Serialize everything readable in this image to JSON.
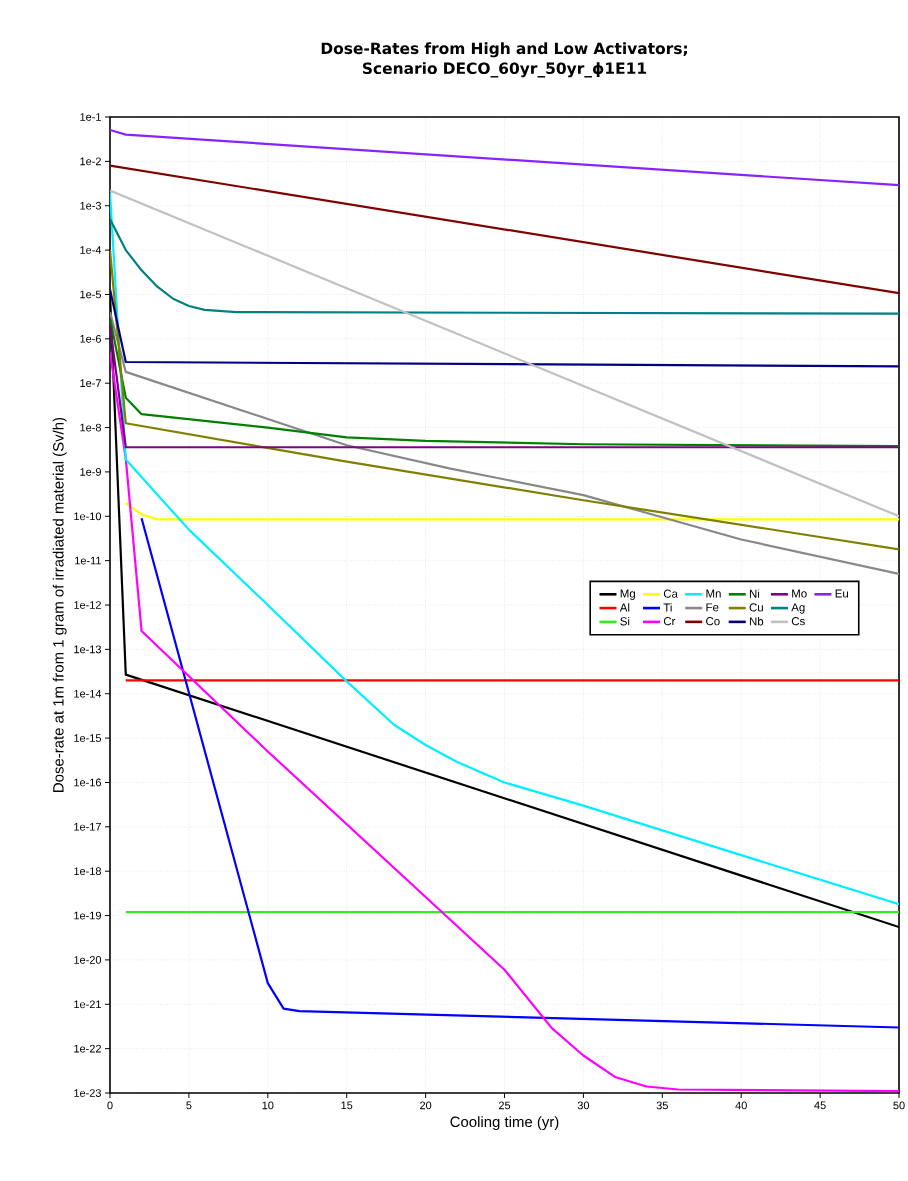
{
  "chart_data": {
    "type": "line",
    "title": "Dose-Rates from High and Low Activators; Scenario DECO_60yr_50yr_ϕ1E11",
    "xlabel": "Cooling time (yr)",
    "ylabel": "Dose-rate at 1m from 1 gram of irradiated material (Sv/h)",
    "log": "y",
    "grid": true,
    "legend": "right",
    "marker": "none",
    "line_style": "solid",
    "xlim": [
      0,
      50
    ],
    "xticks": [
      0,
      5,
      10,
      15,
      20,
      25,
      30,
      35,
      40,
      45,
      50
    ],
    "ylim": [
      1e-23,
      0.1
    ],
    "yticks": [
      {
        "value": 1e-23,
        "label": "1e-23"
      },
      {
        "value": 1e-22,
        "label": "1e-22"
      },
      {
        "value": 1e-21,
        "label": "1e-21"
      },
      {
        "value": 1e-20,
        "label": "1e-20"
      },
      {
        "value": 1e-19,
        "label": "1e-19"
      },
      {
        "value": 1e-18,
        "label": "1e-18"
      },
      {
        "value": 1e-17,
        "label": "1e-17"
      },
      {
        "value": 1e-16,
        "label": "1e-16"
      },
      {
        "value": 1e-15,
        "label": "1e-15"
      },
      {
        "value": 1e-14,
        "label": "1e-14"
      },
      {
        "value": 1e-13,
        "label": "1e-13"
      },
      {
        "value": 1e-12,
        "label": "1e-12"
      },
      {
        "value": 1e-11,
        "label": "1e-11"
      },
      {
        "value": 1e-10,
        "label": "1e-10"
      },
      {
        "value": 1e-09,
        "label": "1e-9"
      },
      {
        "value": 1e-08,
        "label": "1e-8"
      },
      {
        "value": 1e-07,
        "label": "1e-7"
      },
      {
        "value": 1e-06,
        "label": "1e-6"
      },
      {
        "value": 1e-05,
        "label": "1e-5"
      },
      {
        "value": 0.0001,
        "label": "1e-4"
      },
      {
        "value": 0.001,
        "label": "1e-3"
      },
      {
        "value": 0.01,
        "label": "1e-2"
      },
      {
        "value": 0.1,
        "label": "1e-1"
      }
    ],
    "series": [
      {
        "name": "Mg",
        "color": "#000000",
        "x": [
          0,
          1,
          50
        ],
        "values": [
          1e-05,
          2.7e-14,
          5.5e-20
        ]
      },
      {
        "name": "Al",
        "color": "#ff0000",
        "x": [
          1,
          50
        ],
        "values": [
          2e-14,
          2e-14
        ]
      },
      {
        "name": "Si",
        "color": "#33ee22",
        "x": [
          1,
          50
        ],
        "values": [
          1.2e-19,
          1.2e-19
        ]
      },
      {
        "name": "Ca",
        "color": "#ffff00",
        "x": [
          1,
          2,
          3,
          50
        ],
        "values": [
          2e-10,
          1.1e-10,
          8.5e-11,
          8.5e-11
        ]
      },
      {
        "name": "Ti",
        "color": "#0000ff",
        "x": [
          2,
          10,
          11,
          12,
          50
        ],
        "values": [
          9e-11,
          3e-21,
          8e-22,
          7e-22,
          3e-22
        ]
      },
      {
        "name": "Cr",
        "color": "#ff00ff",
        "x": [
          0,
          1,
          2,
          10,
          25,
          28,
          30,
          32,
          34,
          36,
          50
        ],
        "values": [
          5e-07,
          2e-09,
          2.6e-13,
          5e-16,
          6e-21,
          2.9e-22,
          7e-23,
          2.3e-23,
          1.4e-23,
          1.2e-23,
          1.1e-23
        ]
      },
      {
        "name": "Mn",
        "color": "#00eeff",
        "x": [
          0,
          1,
          5,
          10,
          15,
          18,
          20,
          22,
          25,
          30,
          40,
          50
        ],
        "values": [
          0.002,
          1.9e-09,
          5e-11,
          1e-12,
          1.9e-14,
          2e-15,
          7e-16,
          2.9e-16,
          1e-16,
          3e-17,
          2.3e-18,
          1.8e-19
        ]
      },
      {
        "name": "Fe",
        "color": "#888888",
        "x": [
          0,
          1,
          15,
          21.5,
          30,
          40,
          50
        ],
        "values": [
          4e-06,
          1.8e-07,
          4e-09,
          1.2e-09,
          3e-10,
          3e-11,
          5e-12
        ]
      },
      {
        "name": "Co",
        "color": "#800000",
        "x": [
          0,
          50
        ],
        "values": [
          0.008,
          1.07e-05
        ]
      },
      {
        "name": "Ni",
        "color": "#008000",
        "x": [
          0,
          1,
          2,
          10,
          15,
          20,
          30,
          50
        ],
        "values": [
          3e-06,
          4.7e-08,
          2e-08,
          1e-08,
          6e-09,
          5e-09,
          4.2e-09,
          3.8e-09
        ]
      },
      {
        "name": "Cu",
        "color": "#808000",
        "x": [
          0,
          1,
          15,
          30,
          50
        ],
        "values": [
          0.0001,
          1.25e-08,
          1.7e-09,
          2.3e-10,
          1.8e-11
        ]
      },
      {
        "name": "Nb",
        "color": "#000080",
        "x": [
          0,
          1,
          50
        ],
        "values": [
          1.3e-05,
          3e-07,
          2.4e-07
        ]
      },
      {
        "name": "Mo",
        "color": "#800080",
        "x": [
          0,
          1,
          50
        ],
        "values": [
          2e-06,
          3.6e-09,
          3.6e-09
        ]
      },
      {
        "name": "Ag",
        "color": "#008080",
        "x": [
          0,
          1,
          2,
          3,
          4,
          5,
          6,
          8,
          50
        ],
        "values": [
          0.0005,
          0.0001,
          3.5e-05,
          1.5e-05,
          8e-06,
          5.5e-06,
          4.5e-06,
          4e-06,
          3.7e-06
        ]
      },
      {
        "name": "Cs",
        "color": "#c0c0c0",
        "x": [
          0,
          50
        ],
        "values": [
          0.0022,
          1e-10
        ]
      },
      {
        "name": "Eu",
        "color": "#8822ff",
        "x": [
          0,
          1,
          50
        ],
        "values": [
          0.051,
          0.04,
          0.0029
        ]
      }
    ]
  }
}
